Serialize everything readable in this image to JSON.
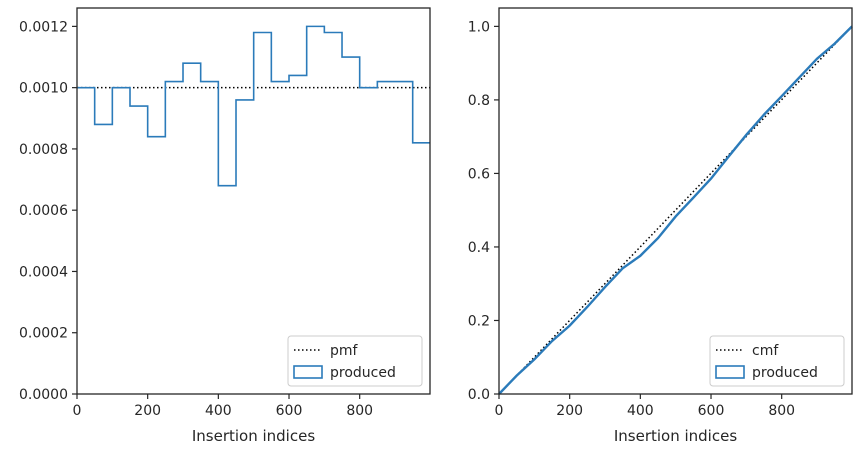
{
  "chart_data": [
    {
      "type": "histogram-step",
      "xlabel": "Insertion indices",
      "ylabel": "",
      "xlim": [
        0,
        999
      ],
      "ylim": [
        0,
        0.00126
      ],
      "xticks": [
        0,
        200,
        400,
        600,
        800
      ],
      "xtick_labels": [
        "0",
        "200",
        "400",
        "600",
        "800"
      ],
      "yticks": [
        0,
        0.0002,
        0.0004,
        0.0006,
        0.0008,
        0.001,
        0.0012
      ],
      "ytick_labels": [
        "0.0000",
        "0.0002",
        "0.0004",
        "0.0006",
        "0.0008",
        "0.0010",
        "0.0012"
      ],
      "legend_position": "lower-right",
      "series": [
        {
          "name": "pmf",
          "style": "dotted",
          "color": "#000000",
          "x": [
            0,
            999
          ],
          "y": [
            0.001,
            0.001
          ]
        },
        {
          "name": "produced",
          "style": "step",
          "color": "#2b7bba",
          "bin_edges": [
            0,
            50,
            100,
            150,
            200,
            250,
            300,
            350,
            400,
            450,
            500,
            550,
            600,
            650,
            700,
            750,
            800,
            850,
            900,
            950,
            999
          ],
          "values": [
            0.001,
            0.00088,
            0.001,
            0.00094,
            0.00084,
            0.00102,
            0.00108,
            0.00102,
            0.00068,
            0.00096,
            0.00118,
            0.00102,
            0.00104,
            0.0012,
            0.00118,
            0.0011,
            0.001,
            0.00102,
            0.00102,
            0.00082
          ]
        }
      ]
    },
    {
      "type": "line",
      "xlabel": "Insertion indices",
      "ylabel": "",
      "xlim": [
        0,
        999
      ],
      "ylim": [
        0,
        1.05
      ],
      "xticks": [
        0,
        200,
        400,
        600,
        800
      ],
      "xtick_labels": [
        "0",
        "200",
        "400",
        "600",
        "800"
      ],
      "yticks": [
        0,
        0.2,
        0.4,
        0.6,
        0.8,
        1.0
      ],
      "ytick_labels": [
        "0.0",
        "0.2",
        "0.4",
        "0.6",
        "0.8",
        "1.0"
      ],
      "legend_position": "lower-right",
      "series": [
        {
          "name": "cmf",
          "style": "dotted",
          "color": "#000000",
          "x": [
            0,
            999
          ],
          "y": [
            0,
            1.0
          ]
        },
        {
          "name": "produced",
          "style": "solid",
          "color": "#2b7bba",
          "x": [
            0,
            50,
            100,
            150,
            200,
            250,
            300,
            350,
            400,
            450,
            500,
            550,
            600,
            650,
            700,
            750,
            800,
            850,
            900,
            950,
            999
          ],
          "y": [
            0,
            0.05,
            0.094,
            0.144,
            0.186,
            0.237,
            0.291,
            0.342,
            0.376,
            0.424,
            0.483,
            0.534,
            0.586,
            0.646,
            0.705,
            0.76,
            0.81,
            0.861,
            0.912,
            0.953,
            1.0
          ]
        }
      ]
    }
  ]
}
